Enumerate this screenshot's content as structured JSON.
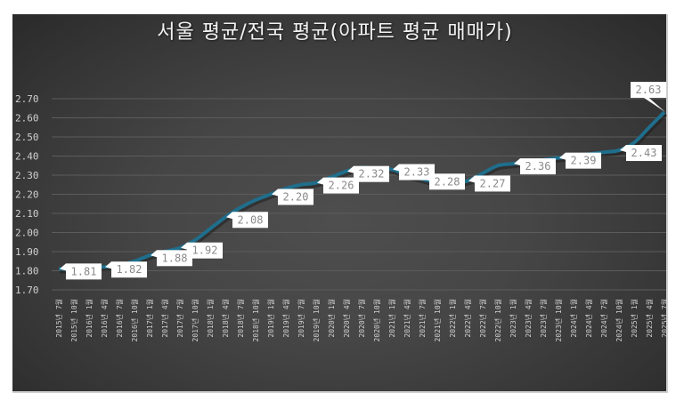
{
  "chart_data": {
    "type": "line",
    "title": "서울 평균/전국 평균(아파트 평균 매매가)",
    "xlabel": "",
    "ylabel": "",
    "ylim": [
      1.7,
      2.7
    ],
    "yticks": [
      "1.70",
      "1.80",
      "1.90",
      "2.00",
      "2.10",
      "2.20",
      "2.30",
      "2.40",
      "2.50",
      "2.60",
      "2.70"
    ],
    "grid": true,
    "legend": "none",
    "line_color": "#1f6e8c",
    "categories": [
      "2015년 7월",
      "2015년 10월",
      "2016년 1월",
      "2016년 4월",
      "2016년 7월",
      "2016년 10월",
      "2017년 1월",
      "2017년 4월",
      "2017년 7월",
      "2017년 10월",
      "2018년 1월",
      "2018년 4월",
      "2018년 7월",
      "2018년 10월",
      "2019년 1월",
      "2019년 4월",
      "2019년 7월",
      "2019년 10월",
      "2020년 1월",
      "2020년 4월",
      "2020년 7월",
      "2020년 10월",
      "2021년 1월",
      "2021년 4월",
      "2021년 7월",
      "2021년 10월",
      "2022년 1월",
      "2022년 4월",
      "2022년 7월",
      "2022년 10월",
      "2023년 1월",
      "2023년 4월",
      "2023년 7월",
      "2023년 10월",
      "2024년 1월",
      "2024년 4월",
      "2024년 7월",
      "2024년 10월",
      "2025년 1월",
      "2025년 4월",
      "2025년 7월"
    ],
    "series": [
      {
        "name": "서울 평균/전국 평균",
        "values": [
          1.81,
          1.81,
          1.82,
          1.82,
          1.83,
          1.85,
          1.88,
          1.9,
          1.92,
          1.96,
          2.02,
          2.08,
          2.13,
          2.17,
          2.2,
          2.23,
          2.25,
          2.26,
          2.29,
          2.32,
          2.34,
          2.33,
          2.33,
          2.3,
          2.28,
          2.26,
          2.26,
          2.27,
          2.31,
          2.35,
          2.36,
          2.37,
          2.38,
          2.39,
          2.4,
          2.41,
          2.42,
          2.43,
          2.47,
          2.55,
          2.63
        ]
      }
    ],
    "data_labels": [
      {
        "index": 0,
        "text": "1.81"
      },
      {
        "index": 3,
        "text": "1.82"
      },
      {
        "index": 6,
        "text": "1.88"
      },
      {
        "index": 8,
        "text": "1.92"
      },
      {
        "index": 11,
        "text": "2.08"
      },
      {
        "index": 14,
        "text": "2.20"
      },
      {
        "index": 17,
        "text": "2.26"
      },
      {
        "index": 19,
        "text": "2.32"
      },
      {
        "index": 22,
        "text": "2.33"
      },
      {
        "index": 24,
        "text": "2.28"
      },
      {
        "index": 27,
        "text": "2.27"
      },
      {
        "index": 30,
        "text": "2.36"
      },
      {
        "index": 33,
        "text": "2.39"
      },
      {
        "index": 37,
        "text": "2.43"
      },
      {
        "index": 40,
        "text": "2.63"
      }
    ]
  }
}
